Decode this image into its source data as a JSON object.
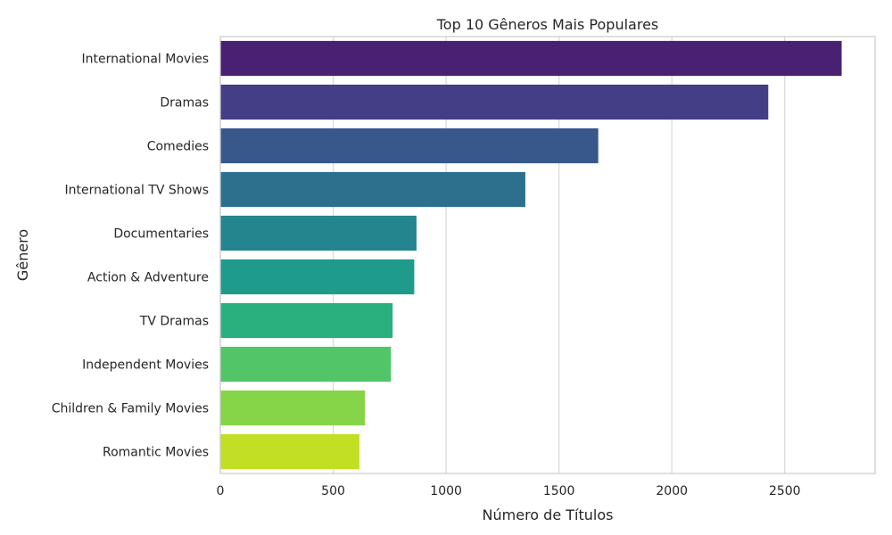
{
  "chart_data": {
    "type": "bar",
    "orientation": "horizontal",
    "title": "Top 10 Gêneros Mais Populares",
    "xlabel": "Número de Títulos",
    "ylabel": "Gênero",
    "xlim": [
      0,
      2900
    ],
    "xticks": [
      0,
      500,
      1000,
      1500,
      2000,
      2500
    ],
    "grid": "vertical",
    "categories": [
      "International Movies",
      "Dramas",
      "Comedies",
      "International TV Shows",
      "Documentaries",
      "Action & Adventure",
      "TV Dramas",
      "Independent Movies",
      "Children & Family Movies",
      "Romantic Movies"
    ],
    "values": [
      2752,
      2427,
      1674,
      1351,
      869,
      859,
      763,
      756,
      641,
      616
    ],
    "colors": [
      "#482173",
      "#433e85",
      "#38588c",
      "#2d708e",
      "#25858e",
      "#1e9b8a",
      "#2ab07f",
      "#52c569",
      "#86d549",
      "#c2df23"
    ]
  }
}
